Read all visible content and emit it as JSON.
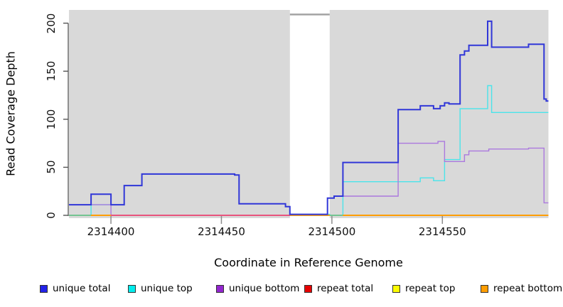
{
  "chart_data": {
    "type": "line",
    "subtype": "step-coverage-plot",
    "xlabel": "Coordinate in Reference Genome",
    "ylabel": "Read Coverage Depth",
    "axes": {
      "x_domain": [
        2314381,
        2314598
      ],
      "y_domain": [
        0,
        213
      ],
      "x_ticks": [
        2314400,
        2314450,
        2314500,
        2314550
      ],
      "y_ticks": [
        0,
        50,
        100,
        150,
        200
      ],
      "grid": false
    },
    "colors": {
      "plot_bg": "#d9d9d9",
      "masked_cap": "#a3a3a3",
      "axis_line": "#555555",
      "tick_mark": "#8c8c8c"
    },
    "masked_region": {
      "x_start": 2314481,
      "x_end": 2314499,
      "top_value": 209
    },
    "zero_segments": [
      {
        "from": 2314381,
        "to": 2314391,
        "color": "#63c9a0"
      },
      {
        "from": 2314391,
        "to": 2314400,
        "color": "#ff9d00"
      },
      {
        "from": 2314400,
        "to": 2314481,
        "color": "#e8488a"
      },
      {
        "from": 2314499,
        "to": 2314505,
        "color": "#63c9a0"
      },
      {
        "from": 2314505,
        "to": 2314598,
        "color": "#ff9d00"
      }
    ],
    "draw_order": [
      "unique_top",
      "unique_bottom",
      "repeat_total",
      "repeat_top",
      "repeat_bottom",
      "zero_segments",
      "unique_total"
    ],
    "series": [
      {
        "id": "unique_total",
        "name": "unique total",
        "color": "#3137d8",
        "width": 2,
        "extend_to_end": true,
        "points": [
          [
            2314381,
            11
          ],
          [
            2314391,
            22
          ],
          [
            2314400,
            11
          ],
          [
            2314406,
            31
          ],
          [
            2314414,
            43
          ],
          [
            2314456,
            42
          ],
          [
            2314458,
            12
          ],
          [
            2314479,
            9
          ],
          [
            2314481,
            1
          ],
          [
            2314498,
            18
          ],
          [
            2314501,
            20
          ],
          [
            2314505,
            55
          ],
          [
            2314530,
            110
          ],
          [
            2314540,
            114
          ],
          [
            2314546,
            111
          ],
          [
            2314549,
            114
          ],
          [
            2314551,
            117
          ],
          [
            2314553,
            116
          ],
          [
            2314558,
            167
          ],
          [
            2314560,
            171
          ],
          [
            2314562,
            177
          ],
          [
            2314570.5,
            202
          ],
          [
            2314572.3,
            175
          ],
          [
            2314589,
            178
          ],
          [
            2314596,
            121
          ],
          [
            2314597,
            119
          ]
        ]
      },
      {
        "id": "unique_top",
        "name": "unique top",
        "color": "#4ae4ea",
        "width": 1.4,
        "extend_to_end": true,
        "points": [
          [
            2314381,
            0
          ],
          [
            2314391,
            11
          ],
          [
            2314406,
            31
          ],
          [
            2314414,
            43
          ],
          [
            2314456,
            42
          ],
          [
            2314458,
            12
          ],
          [
            2314479,
            9
          ],
          [
            2314481,
            1
          ],
          [
            2314499,
            0
          ],
          [
            2314505,
            35
          ],
          [
            2314540,
            39
          ],
          [
            2314546,
            36
          ],
          [
            2314551,
            58
          ],
          [
            2314558,
            111
          ],
          [
            2314570.5,
            135
          ],
          [
            2314572.3,
            107
          ]
        ]
      },
      {
        "id": "unique_bottom",
        "name": "unique bottom",
        "color": "#ab79de",
        "width": 1.4,
        "extend_to_end": true,
        "points": [
          [
            2314381,
            11
          ],
          [
            2314400,
            0
          ],
          [
            2314498,
            18
          ],
          [
            2314501,
            20
          ],
          [
            2314530,
            75
          ],
          [
            2314548,
            77
          ],
          [
            2314551,
            56
          ],
          [
            2314560,
            63
          ],
          [
            2314562,
            67
          ],
          [
            2314571,
            69
          ],
          [
            2314589,
            70
          ],
          [
            2314596,
            13
          ]
        ]
      },
      {
        "id": "repeat_total",
        "name": "repeat total",
        "color": "#dd2222",
        "width": 1.4,
        "extend_to_end": true,
        "points": [
          [
            2314381,
            0
          ]
        ]
      },
      {
        "id": "repeat_top",
        "name": "repeat top",
        "color": "#f2e926",
        "width": 1.4,
        "extend_to_end": true,
        "points": [
          [
            2314381,
            0
          ]
        ]
      },
      {
        "id": "repeat_bottom",
        "name": "repeat bottom",
        "color": "#ff9d00",
        "width": 1.4,
        "extend_to_end": true,
        "points": [
          [
            2314381,
            0
          ]
        ]
      }
    ],
    "legend": [
      {
        "label": "unique total",
        "color": "#2222e8"
      },
      {
        "label": "unique top",
        "color": "#00eded"
      },
      {
        "label": "unique bottom",
        "color": "#9326cf"
      },
      {
        "label": "repeat total",
        "color": "#e60000"
      },
      {
        "label": "repeat top",
        "color": "#fcfc00"
      },
      {
        "label": "repeat bottom",
        "color": "#ff9d00"
      }
    ],
    "legend_position": "bottom"
  }
}
